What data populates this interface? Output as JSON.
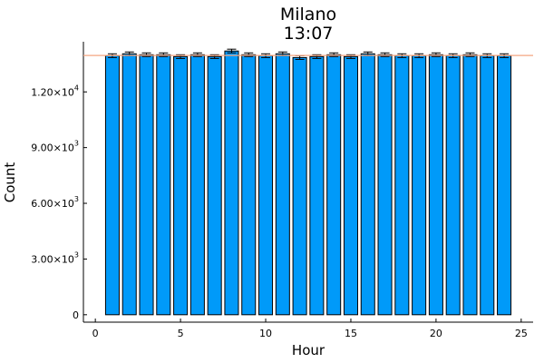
{
  "chart_data": {
    "type": "bar",
    "title": "Milano",
    "subtitle": "13:07",
    "xlabel": "Hour",
    "ylabel": "Count",
    "x": [
      1,
      2,
      3,
      4,
      5,
      6,
      7,
      8,
      9,
      10,
      11,
      12,
      13,
      14,
      15,
      16,
      17,
      18,
      19,
      20,
      21,
      22,
      23,
      24
    ],
    "values": [
      13950,
      14050,
      14000,
      14000,
      13900,
      14000,
      13900,
      14200,
      14000,
      13950,
      14050,
      13850,
      13900,
      14000,
      13900,
      14050,
      14000,
      13950,
      13950,
      14000,
      13950,
      14000,
      13950,
      13950
    ],
    "errors": [
      100,
      100,
      100,
      100,
      100,
      100,
      100,
      100,
      100,
      100,
      100,
      100,
      100,
      100,
      100,
      100,
      100,
      100,
      100,
      100,
      100,
      100,
      100,
      100
    ],
    "reference_line": 13960,
    "xlim": [
      -0.7,
      25.7
    ],
    "ylim": [
      -400,
      14700
    ],
    "xticks": [
      0,
      5,
      10,
      15,
      20,
      25
    ],
    "xtick_labels": [
      "0",
      "5",
      "10",
      "15",
      "20",
      "25"
    ],
    "yticks": [
      0,
      3000,
      6000,
      9000,
      12000
    ],
    "ytick_labels": [
      {
        "mantissa": "0",
        "exp": ""
      },
      {
        "mantissa": "3.00×10",
        "exp": "3"
      },
      {
        "mantissa": "6.00×10",
        "exp": "3"
      },
      {
        "mantissa": "9.00×10",
        "exp": "3"
      },
      {
        "mantissa": "1.20×10",
        "exp": "4"
      }
    ],
    "grid": false,
    "legend": "none",
    "bar_color": "#009AF9",
    "reference_line_color": "#F4A582"
  }
}
